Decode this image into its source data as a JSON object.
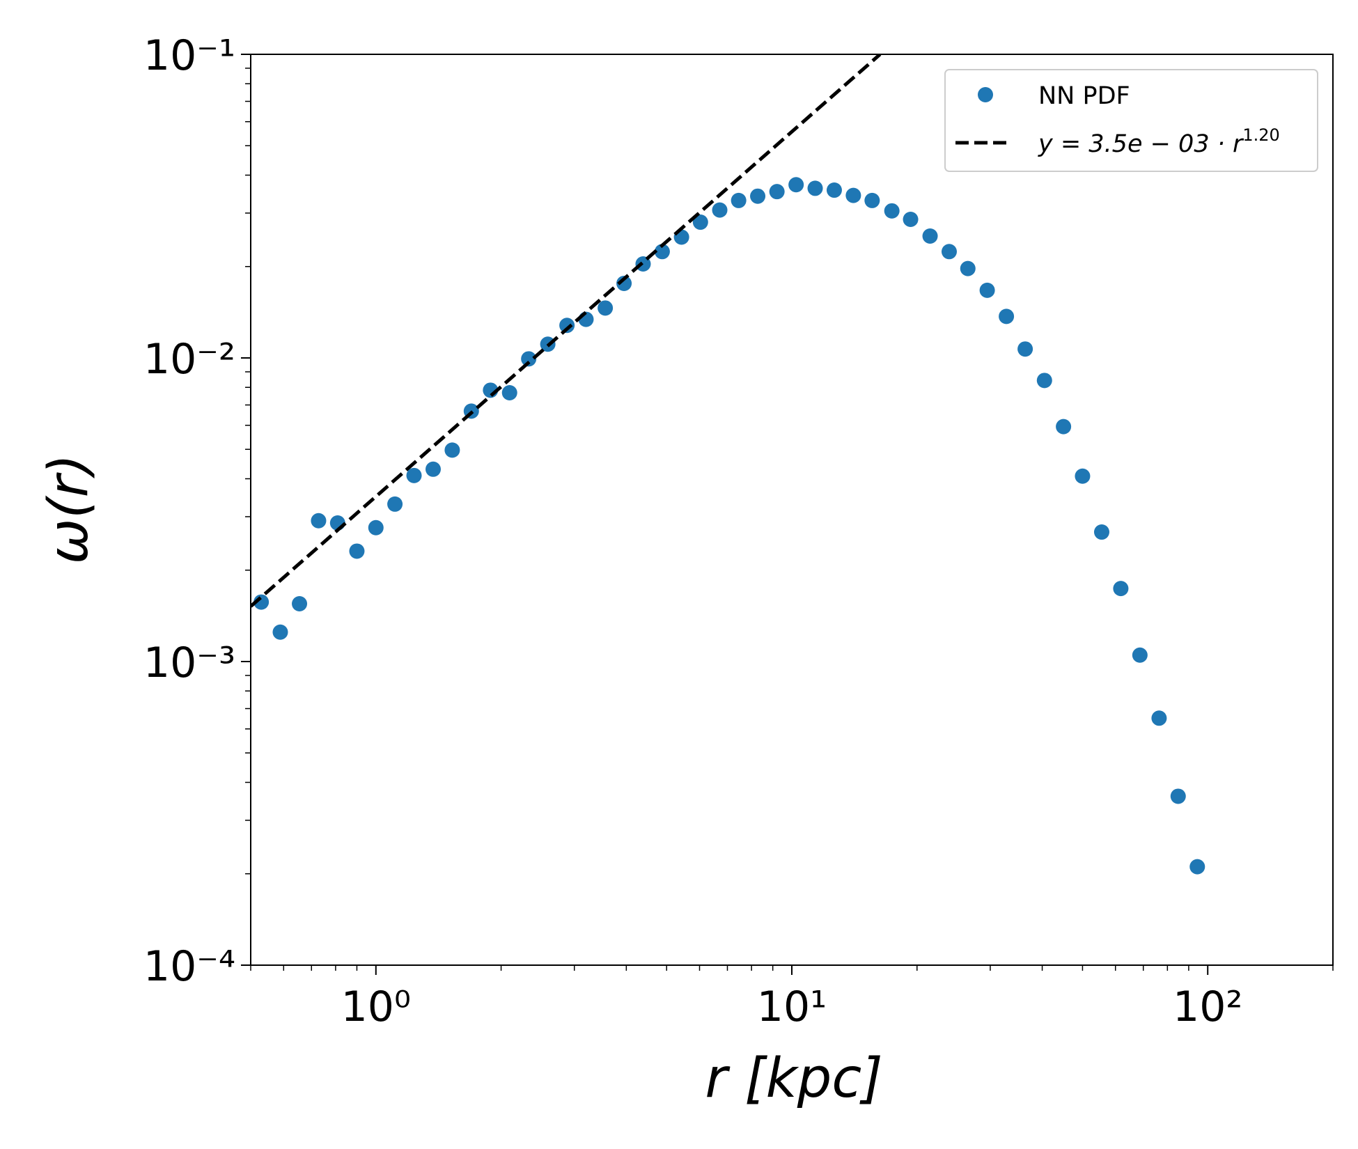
{
  "chart_data": {
    "type": "scatter",
    "xlabel": "r [kpc]",
    "ylabel": "ω(r)",
    "xscale": "log",
    "yscale": "log",
    "minor_ticks": true,
    "xlim": [
      0.5,
      200
    ],
    "ylim": [
      0.0001,
      0.1
    ],
    "xticks": [
      {
        "value": 1,
        "label": "10⁰"
      },
      {
        "value": 10,
        "label": "10¹"
      },
      {
        "value": 100,
        "label": "10²"
      }
    ],
    "yticks": [
      {
        "value": 0.0001,
        "label": "10⁻⁴"
      },
      {
        "value": 0.001,
        "label": "10⁻³"
      },
      {
        "value": 0.01,
        "label": "10⁻²"
      },
      {
        "value": 0.1,
        "label": "10⁻¹"
      }
    ],
    "legend": "upper right",
    "series": [
      {
        "name": "NN PDF",
        "style": "markers",
        "color": "#1f77b4",
        "x": [
          0.53,
          0.589,
          0.655,
          0.728,
          0.809,
          0.9,
          1.0,
          1.111,
          1.235,
          1.373,
          1.526,
          1.696,
          1.886,
          2.096,
          2.33,
          2.59,
          2.88,
          3.2,
          3.56,
          3.95,
          4.39,
          4.88,
          5.43,
          6.03,
          6.71,
          7.45,
          8.28,
          9.21,
          10.24,
          11.38,
          12.65,
          14.06,
          15.6,
          17.4,
          19.3,
          21.5,
          23.9,
          26.5,
          29.5,
          32.8,
          36.4,
          40.5,
          45.0,
          50.0,
          55.6,
          61.8,
          68.7,
          76.4,
          84.9,
          94.4
        ],
        "values": [
          0.00157,
          0.00125,
          0.00155,
          0.00291,
          0.00286,
          0.00231,
          0.00276,
          0.0033,
          0.0041,
          0.0043,
          0.00497,
          0.00668,
          0.00783,
          0.00768,
          0.00993,
          0.0111,
          0.0128,
          0.0134,
          0.0146,
          0.0176,
          0.0204,
          0.0224,
          0.025,
          0.028,
          0.0307,
          0.033,
          0.0341,
          0.0353,
          0.0372,
          0.0362,
          0.0357,
          0.0343,
          0.033,
          0.0305,
          0.0286,
          0.0252,
          0.0224,
          0.0197,
          0.0167,
          0.0137,
          0.0107,
          0.00843,
          0.00594,
          0.00408,
          0.00267,
          0.00174,
          0.00105,
          0.000651,
          0.00036,
          0.000211
        ]
      },
      {
        "name": "y = 3.5e − 03 · r",
        "name_superscript": "1.20",
        "style": "dashed-line",
        "color": "#000000",
        "x": [
          0.5,
          16.3
        ],
        "values": [
          0.00152,
          0.1
        ]
      }
    ]
  }
}
